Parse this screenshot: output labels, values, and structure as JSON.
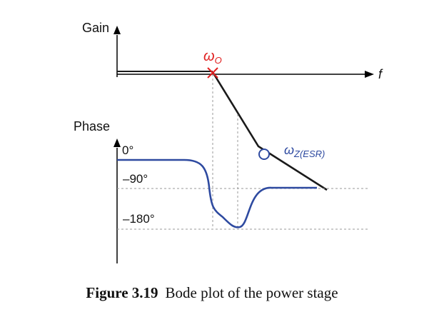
{
  "diagram": {
    "gain_label": "Gain",
    "phase_label": "Phase",
    "freq_label": "f",
    "omega_o_label": "ω",
    "omega_o_sub": "O",
    "omega_z_label": "ω",
    "omega_z_sub": "Z(ESR)",
    "phase_ticks": [
      "0°",
      "–90°",
      "–180°"
    ],
    "colors": {
      "gain_line": "#1a1a1a",
      "phase_curve": "#2e4aa0",
      "marker_pole": "#e02020",
      "marker_zero": "#2e4aa0",
      "dashed": "#999999",
      "omega_o_text": "#e02020",
      "omega_z_text": "#2e4aa0"
    }
  },
  "caption": {
    "number": "Figure 3.19",
    "text": "Bode plot of the power stage"
  }
}
